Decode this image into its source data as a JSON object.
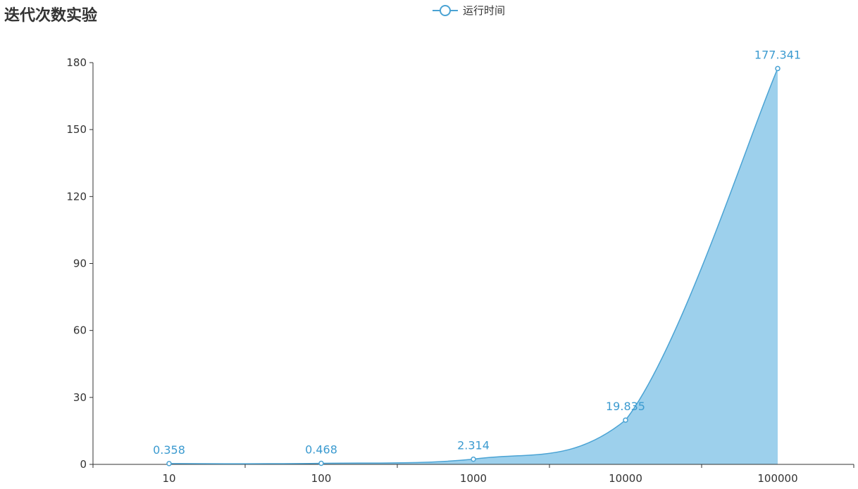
{
  "chart_data": {
    "type": "area",
    "title": "迭代次数实验",
    "categories": [
      "10",
      "100",
      "1000",
      "10000",
      "100000"
    ],
    "series": [
      {
        "name": "运行时间",
        "values": [
          0.358,
          0.468,
          2.314,
          19.835,
          177.341
        ]
      }
    ],
    "y_ticks": [
      "0",
      "30",
      "60",
      "90",
      "120",
      "150",
      "180"
    ],
    "ylim": [
      0,
      180
    ],
    "grid": false,
    "legend_position": "top-center",
    "colors": {
      "line": "#4aa3d4",
      "area": "#9dd0ec",
      "label": "#3c9bd0",
      "axis": "#333333"
    }
  }
}
